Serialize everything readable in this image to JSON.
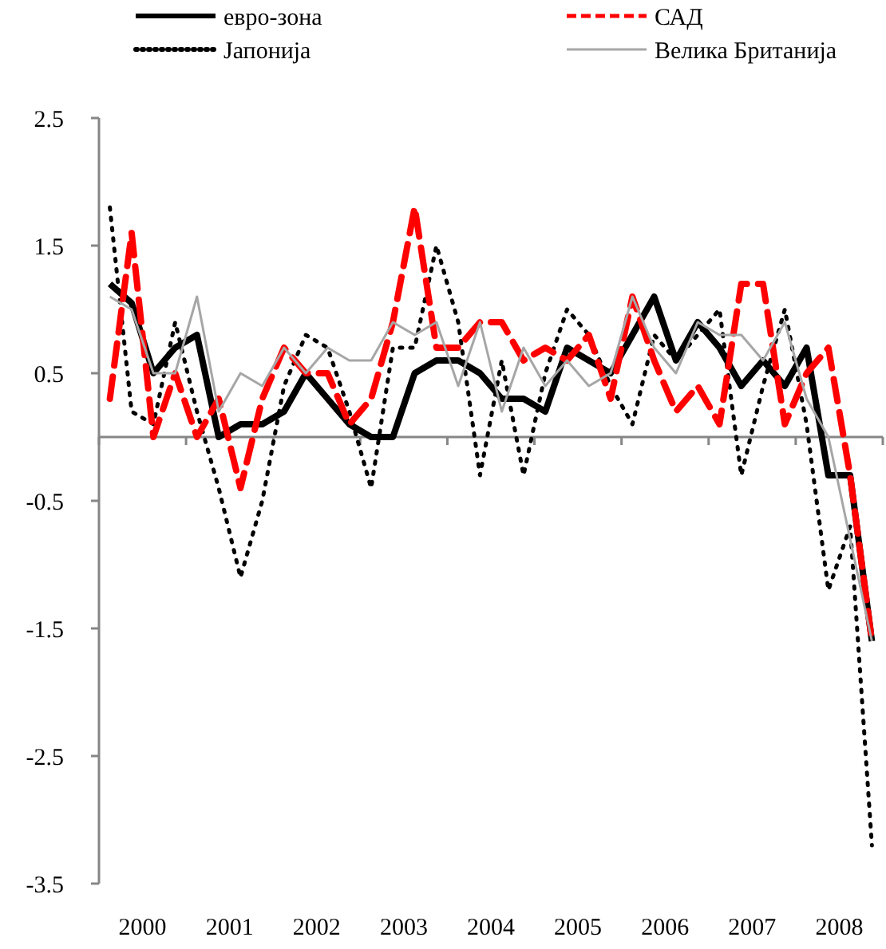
{
  "chart_data": {
    "type": "line",
    "x": [
      2000.125,
      2000.375,
      2000.625,
      2000.875,
      2001.125,
      2001.375,
      2001.625,
      2001.875,
      2002.125,
      2002.375,
      2002.625,
      2002.875,
      2003.125,
      2003.375,
      2003.625,
      2003.875,
      2004.125,
      2004.375,
      2004.625,
      2004.875,
      2005.125,
      2005.375,
      2005.625,
      2005.875,
      2006.125,
      2006.375,
      2006.625,
      2006.875,
      2007.125,
      2007.375,
      2007.625,
      2007.875,
      2008.125,
      2008.375,
      2008.625,
      2008.875
    ],
    "series": [
      {
        "name": "евро-зона",
        "color": "#000000",
        "line_style": "solid",
        "values": [
          1.2,
          1.05,
          0.5,
          0.7,
          0.8,
          0.0,
          0.1,
          0.1,
          0.2,
          0.5,
          0.3,
          0.1,
          0.0,
          0.0,
          0.5,
          0.6,
          0.6,
          0.5,
          0.3,
          0.3,
          0.2,
          0.7,
          0.6,
          0.5,
          0.8,
          1.1,
          0.6,
          0.9,
          0.7,
          0.4,
          0.6,
          0.4,
          0.7,
          -0.3,
          -0.3,
          -1.6
        ]
      },
      {
        "name": "САД",
        "color": "#ff0000",
        "line_style": "dashed",
        "values": [
          0.3,
          1.6,
          0.0,
          0.5,
          0.0,
          0.3,
          -0.4,
          0.3,
          0.7,
          0.5,
          0.5,
          0.1,
          0.3,
          0.9,
          1.8,
          0.7,
          0.7,
          0.9,
          0.9,
          0.6,
          0.7,
          0.6,
          0.8,
          0.3,
          1.1,
          0.6,
          0.2,
          0.4,
          0.1,
          1.2,
          1.2,
          0.1,
          0.5,
          0.7,
          -0.3,
          -1.6
        ]
      },
      {
        "name": "Јапонија",
        "color": "#000000",
        "line_style": "dotted",
        "values": [
          1.8,
          0.2,
          0.1,
          0.9,
          0.2,
          -0.4,
          -1.1,
          -0.5,
          0.4,
          0.8,
          0.7,
          0.2,
          -0.4,
          0.7,
          0.7,
          1.5,
          0.9,
          -0.3,
          0.6,
          -0.3,
          0.5,
          1.0,
          0.8,
          0.4,
          0.1,
          0.8,
          0.6,
          0.8,
          1.0,
          -0.3,
          0.4,
          1.0,
          0.1,
          -1.2,
          -0.7,
          -3.2
        ]
      },
      {
        "name": "Велика Британија",
        "color": "#a6a6a6",
        "line_style": "solid",
        "values": [
          1.1,
          1.0,
          0.5,
          0.5,
          1.1,
          0.2,
          0.5,
          0.4,
          0.7,
          0.5,
          0.7,
          0.6,
          0.6,
          0.9,
          0.8,
          0.9,
          0.4,
          0.9,
          0.2,
          0.7,
          0.4,
          0.6,
          0.4,
          0.5,
          1.1,
          0.7,
          0.5,
          0.9,
          0.8,
          0.8,
          0.6,
          0.9,
          0.3,
          0.0,
          -0.8,
          -1.6
        ]
      }
    ],
    "xlim": [
      2000,
      2009
    ],
    "xticks": [
      {
        "value": 2000,
        "label": null
      },
      {
        "value": 2000.5,
        "label": "2000"
      },
      {
        "value": 2001,
        "label": null
      },
      {
        "value": 2001.5,
        "label": "2001"
      },
      {
        "value": 2002,
        "label": null
      },
      {
        "value": 2002.5,
        "label": "2002"
      },
      {
        "value": 2003,
        "label": null
      },
      {
        "value": 2003.5,
        "label": "2003"
      },
      {
        "value": 2004,
        "label": null
      },
      {
        "value": 2004.5,
        "label": "2004"
      },
      {
        "value": 2005,
        "label": null
      },
      {
        "value": 2005.5,
        "label": "2005"
      },
      {
        "value": 2006,
        "label": null
      },
      {
        "value": 2006.5,
        "label": "2006"
      },
      {
        "value": 2007,
        "label": null
      },
      {
        "value": 2007.5,
        "label": "2007"
      },
      {
        "value": 2008,
        "label": null
      },
      {
        "value": 2008.5,
        "label": "2008"
      },
      {
        "value": 2009,
        "label": null
      }
    ],
    "ylim": [
      -3.5,
      2.5
    ],
    "yticks": [
      -3.5,
      -2.5,
      -1.5,
      -0.5,
      0.5,
      1.5,
      2.5
    ],
    "grid": false,
    "legend": "top",
    "marker": "none"
  }
}
